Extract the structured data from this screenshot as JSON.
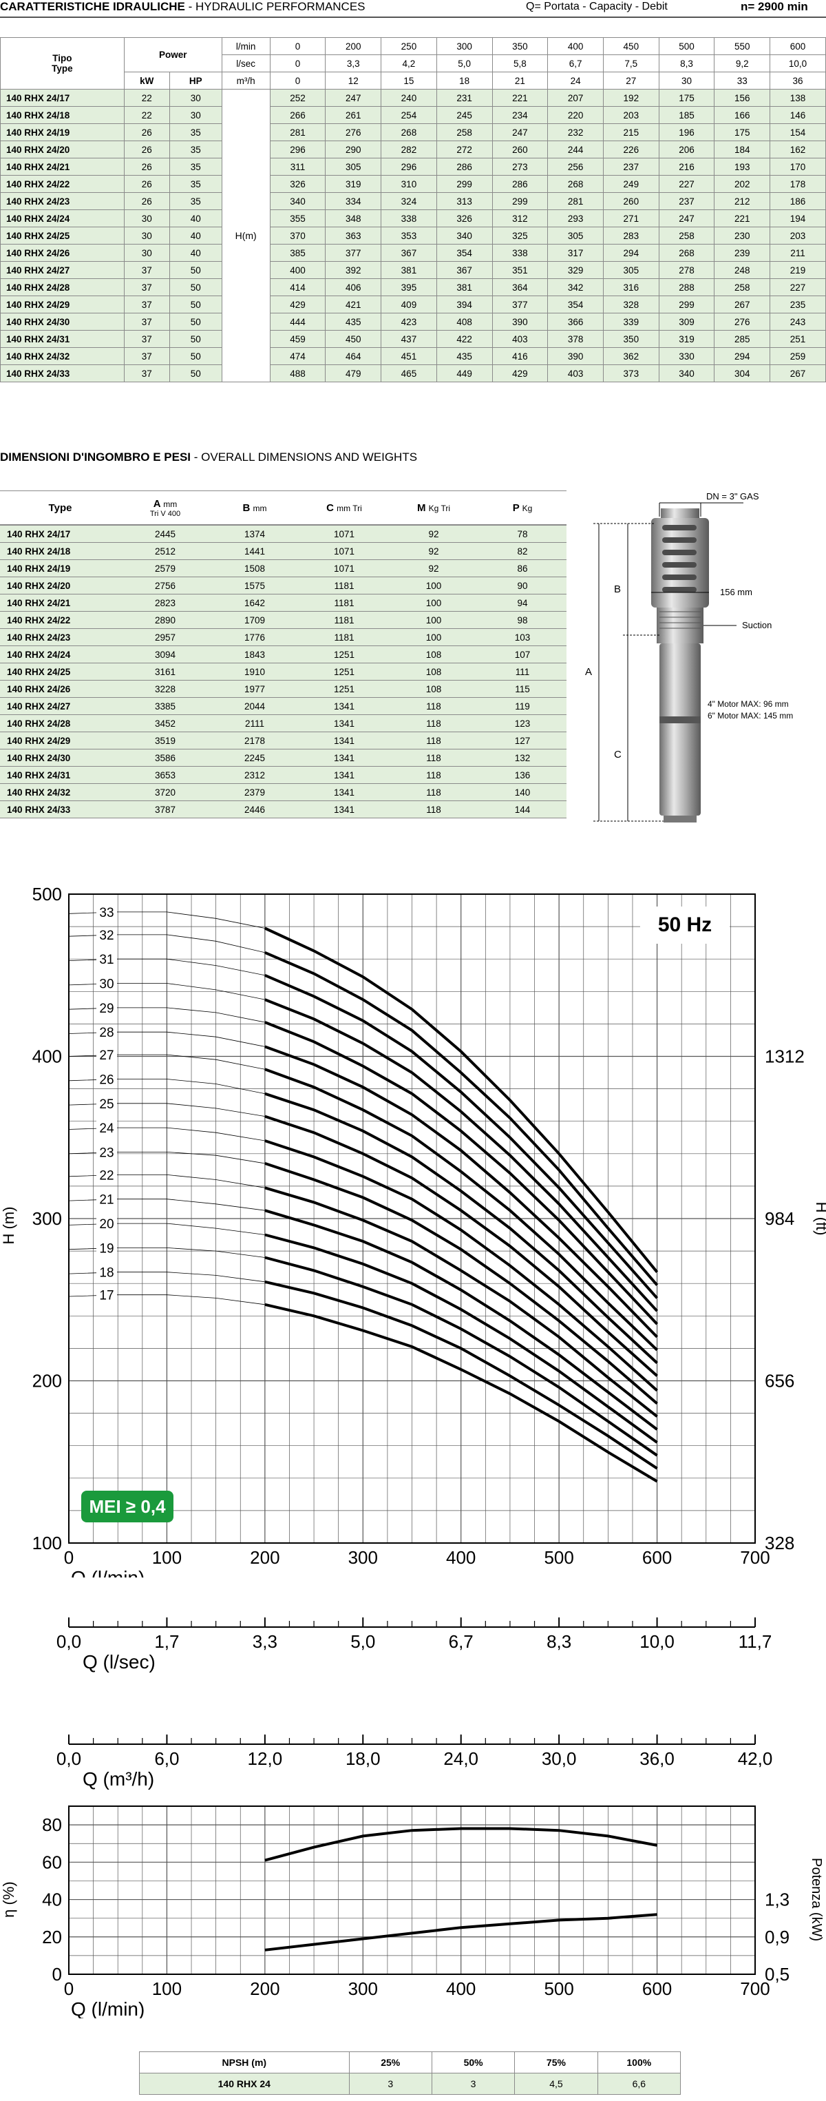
{
  "perf_section": {
    "title": "CARATTERISTICHE IDRAULICHE",
    "title_en": "- HYDRAULIC PERFORMANCES",
    "q_label": "Q= Portata - Capacity - Debit",
    "speed": "n= 2900 min"
  },
  "perf_table": {
    "tipo": "Tipo",
    "type": "Type",
    "power": "Power",
    "kw": "kW",
    "hp": "HP",
    "unit_lmin": "l/min",
    "unit_lsec": "l/sec",
    "unit_m3h": "m³/h",
    "hm": "H(m)",
    "q_lmin": [
      "0",
      "200",
      "250",
      "300",
      "350",
      "400",
      "450",
      "500",
      "550",
      "600"
    ],
    "q_lsec": [
      "0",
      "3,3",
      "4,2",
      "5,0",
      "5,8",
      "6,7",
      "7,5",
      "8,3",
      "9,2",
      "10,0"
    ],
    "q_m3h": [
      "0",
      "12",
      "15",
      "18",
      "21",
      "24",
      "27",
      "30",
      "33",
      "36"
    ],
    "rows": [
      {
        "type": "140 RHX 24/17",
        "kw": "22",
        "hp": "30",
        "h": [
          "252",
          "247",
          "240",
          "231",
          "221",
          "207",
          "192",
          "175",
          "156",
          "138"
        ]
      },
      {
        "type": "140 RHX 24/18",
        "kw": "22",
        "hp": "30",
        "h": [
          "266",
          "261",
          "254",
          "245",
          "234",
          "220",
          "203",
          "185",
          "166",
          "146"
        ]
      },
      {
        "type": "140 RHX 24/19",
        "kw": "26",
        "hp": "35",
        "h": [
          "281",
          "276",
          "268",
          "258",
          "247",
          "232",
          "215",
          "196",
          "175",
          "154"
        ]
      },
      {
        "type": "140 RHX 24/20",
        "kw": "26",
        "hp": "35",
        "h": [
          "296",
          "290",
          "282",
          "272",
          "260",
          "244",
          "226",
          "206",
          "184",
          "162"
        ]
      },
      {
        "type": "140 RHX 24/21",
        "kw": "26",
        "hp": "35",
        "h": [
          "311",
          "305",
          "296",
          "286",
          "273",
          "256",
          "237",
          "216",
          "193",
          "170"
        ]
      },
      {
        "type": "140 RHX 24/22",
        "kw": "26",
        "hp": "35",
        "h": [
          "326",
          "319",
          "310",
          "299",
          "286",
          "268",
          "249",
          "227",
          "202",
          "178"
        ]
      },
      {
        "type": "140 RHX 24/23",
        "kw": "26",
        "hp": "35",
        "h": [
          "340",
          "334",
          "324",
          "313",
          "299",
          "281",
          "260",
          "237",
          "212",
          "186"
        ]
      },
      {
        "type": "140 RHX 24/24",
        "kw": "30",
        "hp": "40",
        "h": [
          "355",
          "348",
          "338",
          "326",
          "312",
          "293",
          "271",
          "247",
          "221",
          "194"
        ]
      },
      {
        "type": "140 RHX 24/25",
        "kw": "30",
        "hp": "40",
        "h": [
          "370",
          "363",
          "353",
          "340",
          "325",
          "305",
          "283",
          "258",
          "230",
          "203"
        ]
      },
      {
        "type": "140 RHX 24/26",
        "kw": "30",
        "hp": "40",
        "h": [
          "385",
          "377",
          "367",
          "354",
          "338",
          "317",
          "294",
          "268",
          "239",
          "211"
        ]
      },
      {
        "type": "140 RHX 24/27",
        "kw": "37",
        "hp": "50",
        "h": [
          "400",
          "392",
          "381",
          "367",
          "351",
          "329",
          "305",
          "278",
          "248",
          "219"
        ]
      },
      {
        "type": "140 RHX 24/28",
        "kw": "37",
        "hp": "50",
        "h": [
          "414",
          "406",
          "395",
          "381",
          "364",
          "342",
          "316",
          "288",
          "258",
          "227"
        ]
      },
      {
        "type": "140 RHX 24/29",
        "kw": "37",
        "hp": "50",
        "h": [
          "429",
          "421",
          "409",
          "394",
          "377",
          "354",
          "328",
          "299",
          "267",
          "235"
        ]
      },
      {
        "type": "140 RHX 24/30",
        "kw": "37",
        "hp": "50",
        "h": [
          "444",
          "435",
          "423",
          "408",
          "390",
          "366",
          "339",
          "309",
          "276",
          "243"
        ]
      },
      {
        "type": "140 RHX 24/31",
        "kw": "37",
        "hp": "50",
        "h": [
          "459",
          "450",
          "437",
          "422",
          "403",
          "378",
          "350",
          "319",
          "285",
          "251"
        ]
      },
      {
        "type": "140 RHX 24/32",
        "kw": "37",
        "hp": "50",
        "h": [
          "474",
          "464",
          "451",
          "435",
          "416",
          "390",
          "362",
          "330",
          "294",
          "259"
        ]
      },
      {
        "type": "140 RHX 24/33",
        "kw": "37",
        "hp": "50",
        "h": [
          "488",
          "479",
          "465",
          "449",
          "429",
          "403",
          "373",
          "340",
          "304",
          "267"
        ]
      }
    ]
  },
  "dims_section": {
    "title": "DIMENSIONI D'INGOMBRO E PESI",
    "title_en": "- OVERALL DIMENSIONS AND WEIGHTS"
  },
  "dims_table": {
    "h_type": "Type",
    "h_a": "A",
    "h_a_unit": "mm",
    "h_a_sub": "Tri V 400",
    "h_b": "B",
    "h_b_unit": "mm",
    "h_c": "C",
    "h_c_unit": "mm Tri",
    "h_m": "M",
    "h_m_unit": "Kg Tri",
    "h_p": "P",
    "h_p_unit": "Kg",
    "rows": [
      {
        "type": "140 RHX 24/17",
        "a": "2445",
        "b": "1374",
        "c": "1071",
        "m": "92",
        "p": "78"
      },
      {
        "type": "140 RHX 24/18",
        "a": "2512",
        "b": "1441",
        "c": "1071",
        "m": "92",
        "p": "82"
      },
      {
        "type": "140 RHX 24/19",
        "a": "2579",
        "b": "1508",
        "c": "1071",
        "m": "92",
        "p": "86"
      },
      {
        "type": "140 RHX 24/20",
        "a": "2756",
        "b": "1575",
        "c": "1181",
        "m": "100",
        "p": "90"
      },
      {
        "type": "140 RHX 24/21",
        "a": "2823",
        "b": "1642",
        "c": "1181",
        "m": "100",
        "p": "94"
      },
      {
        "type": "140 RHX 24/22",
        "a": "2890",
        "b": "1709",
        "c": "1181",
        "m": "100",
        "p": "98"
      },
      {
        "type": "140 RHX 24/23",
        "a": "2957",
        "b": "1776",
        "c": "1181",
        "m": "100",
        "p": "103"
      },
      {
        "type": "140 RHX 24/24",
        "a": "3094",
        "b": "1843",
        "c": "1251",
        "m": "108",
        "p": "107"
      },
      {
        "type": "140 RHX 24/25",
        "a": "3161",
        "b": "1910",
        "c": "1251",
        "m": "108",
        "p": "111"
      },
      {
        "type": "140 RHX 24/26",
        "a": "3228",
        "b": "1977",
        "c": "1251",
        "m": "108",
        "p": "115"
      },
      {
        "type": "140 RHX 24/27",
        "a": "3385",
        "b": "2044",
        "c": "1341",
        "m": "118",
        "p": "119"
      },
      {
        "type": "140 RHX 24/28",
        "a": "3452",
        "b": "2111",
        "c": "1341",
        "m": "118",
        "p": "123"
      },
      {
        "type": "140 RHX 24/29",
        "a": "3519",
        "b": "2178",
        "c": "1341",
        "m": "118",
        "p": "127"
      },
      {
        "type": "140 RHX 24/30",
        "a": "3586",
        "b": "2245",
        "c": "1341",
        "m": "118",
        "p": "132"
      },
      {
        "type": "140 RHX 24/31",
        "a": "3653",
        "b": "2312",
        "c": "1341",
        "m": "118",
        "p": "136"
      },
      {
        "type": "140 RHX 24/32",
        "a": "3720",
        "b": "2379",
        "c": "1341",
        "m": "118",
        "p": "140"
      },
      {
        "type": "140 RHX 24/33",
        "a": "3787",
        "b": "2446",
        "c": "1341",
        "m": "118",
        "p": "144"
      }
    ]
  },
  "pump_drawing": {
    "dn_label": "DN = 3\" GAS",
    "dia_label": "156 mm",
    "suction_label": "Suction",
    "motor4": "4\" Motor MAX: 96 mm",
    "motor6": "6\" Motor MAX: 145 mm",
    "a": "A",
    "b": "B",
    "c": "C"
  },
  "npsh_table": {
    "label": "NPSH (m)",
    "percents": [
      "25%",
      "50%",
      "75%",
      "100%"
    ],
    "model": "140 RHX 24",
    "values": [
      "3",
      "3",
      "4,5",
      "6,6"
    ]
  },
  "colors": {
    "table_green": "#e2efdc",
    "badge_green": "#1a9a3c",
    "curve": "#000000"
  },
  "chart_data": [
    {
      "type": "line",
      "title": "50 Hz",
      "badge": "MEI ≥ 0,4",
      "xlabel": "Q (l/min)",
      "ylabel": "H (m)",
      "ylabel_right": "H (ft)",
      "xlim": [
        0,
        700
      ],
      "ylim": [
        100,
        500
      ],
      "x_ticks": [
        "0",
        "100",
        "200",
        "300",
        "400",
        "500",
        "600",
        "700"
      ],
      "y_ticks": [
        "100",
        "200",
        "300",
        "400",
        "500"
      ],
      "y_ticks_right": [
        {
          "v": 100,
          "label": "328"
        },
        {
          "v": 200,
          "label": "656"
        },
        {
          "v": 300,
          "label": "984"
        },
        {
          "v": 400,
          "label": "1312"
        }
      ],
      "grid": true,
      "stage_labels": [
        "17",
        "18",
        "19",
        "20",
        "21",
        "22",
        "23",
        "24",
        "25",
        "26",
        "27",
        "28",
        "29",
        "30",
        "31",
        "32",
        "33"
      ],
      "x": [
        0,
        50,
        100,
        150,
        200,
        250,
        300,
        350,
        400,
        450,
        500,
        550,
        600
      ],
      "series": [
        {
          "name": "17",
          "values": [
            252,
            253,
            253,
            251,
            247,
            240,
            231,
            221,
            207,
            192,
            175,
            156,
            138
          ]
        },
        {
          "name": "18",
          "values": [
            266,
            267,
            267,
            265,
            261,
            254,
            245,
            234,
            220,
            203,
            185,
            166,
            146
          ]
        },
        {
          "name": "19",
          "values": [
            281,
            282,
            282,
            280,
            276,
            268,
            258,
            247,
            232,
            215,
            196,
            175,
            154
          ]
        },
        {
          "name": "20",
          "values": [
            296,
            297,
            297,
            294,
            290,
            282,
            272,
            260,
            244,
            226,
            206,
            184,
            162
          ]
        },
        {
          "name": "21",
          "values": [
            311,
            312,
            312,
            309,
            305,
            296,
            286,
            273,
            256,
            237,
            216,
            193,
            170
          ]
        },
        {
          "name": "22",
          "values": [
            326,
            327,
            327,
            324,
            319,
            310,
            299,
            286,
            268,
            249,
            227,
            202,
            178
          ]
        },
        {
          "name": "23",
          "values": [
            340,
            341,
            341,
            339,
            334,
            324,
            313,
            299,
            281,
            260,
            237,
            212,
            186
          ]
        },
        {
          "name": "24",
          "values": [
            355,
            356,
            356,
            353,
            348,
            338,
            326,
            312,
            293,
            271,
            247,
            221,
            194
          ]
        },
        {
          "name": "25",
          "values": [
            370,
            371,
            371,
            368,
            363,
            353,
            340,
            325,
            305,
            283,
            258,
            230,
            203
          ]
        },
        {
          "name": "26",
          "values": [
            385,
            386,
            386,
            383,
            377,
            367,
            354,
            338,
            317,
            294,
            268,
            239,
            211
          ]
        },
        {
          "name": "27",
          "values": [
            400,
            401,
            401,
            398,
            392,
            381,
            367,
            351,
            329,
            305,
            278,
            248,
            219
          ]
        },
        {
          "name": "28",
          "values": [
            414,
            415,
            415,
            412,
            406,
            395,
            381,
            364,
            342,
            316,
            288,
            258,
            227
          ]
        },
        {
          "name": "29",
          "values": [
            429,
            430,
            430,
            427,
            421,
            409,
            394,
            377,
            354,
            328,
            299,
            267,
            235
          ]
        },
        {
          "name": "30",
          "values": [
            444,
            445,
            445,
            441,
            435,
            423,
            408,
            390,
            366,
            339,
            309,
            276,
            243
          ]
        },
        {
          "name": "31",
          "values": [
            459,
            460,
            460,
            456,
            450,
            437,
            422,
            403,
            378,
            350,
            319,
            285,
            251
          ]
        },
        {
          "name": "32",
          "values": [
            474,
            475,
            475,
            471,
            464,
            451,
            435,
            416,
            390,
            362,
            330,
            294,
            259
          ]
        },
        {
          "name": "33",
          "values": [
            488,
            489,
            489,
            485,
            479,
            465,
            449,
            429,
            403,
            373,
            340,
            304,
            267
          ]
        }
      ],
      "operating_range": [
        200,
        600
      ]
    },
    {
      "type": "line",
      "xlabel": "Q (l/sec)",
      "x_ticks": [
        "0,0",
        "1,7",
        "3,3",
        "5,0",
        "6,7",
        "8,3",
        "10,0",
        "11,7"
      ]
    },
    {
      "type": "line",
      "xlabel": "Q (m³/h)",
      "x_ticks": [
        "0,0",
        "6,0",
        "12,0",
        "18,0",
        "24,0",
        "30,0",
        "36,0",
        "42,0"
      ]
    },
    {
      "type": "line",
      "xlabel": "Q (l/min)",
      "ylabel": "η (%)",
      "ylabel_right": "Potenza (kW)",
      "xlim": [
        0,
        700
      ],
      "ylim": [
        0,
        90
      ],
      "x_ticks": [
        "0",
        "100",
        "200",
        "300",
        "400",
        "500",
        "600",
        "700"
      ],
      "y_ticks": [
        "0",
        "20",
        "40",
        "60",
        "80"
      ],
      "y_ticks_right": [
        {
          "v": 0,
          "label": "0,5"
        },
        {
          "v": 20,
          "label": "0,9"
        },
        {
          "v": 40,
          "label": "1,3"
        }
      ],
      "grid": true,
      "x": [
        200,
        250,
        300,
        350,
        400,
        450,
        500,
        550,
        600
      ],
      "series": [
        {
          "name": "η (%)",
          "values": [
            61,
            68,
            74,
            77,
            78,
            78,
            77,
            74,
            69
          ]
        },
        {
          "name": "Potenza (kW)",
          "values": [
            13,
            16,
            19,
            22,
            25,
            27,
            29,
            30,
            32
          ]
        }
      ]
    }
  ]
}
